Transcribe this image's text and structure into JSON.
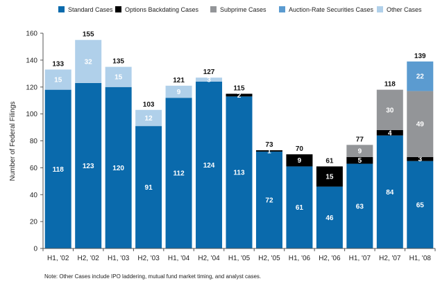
{
  "chart_data": {
    "type": "bar",
    "stacked": true,
    "categories": [
      "H1, '02",
      "H2, '02",
      "H1, '03",
      "H2, '03",
      "H1, '04",
      "H2, '04",
      "H1, '05",
      "H2, '05",
      "H1, '06",
      "H2, '06",
      "H1, '07",
      "H2, '07",
      "H1, '08"
    ],
    "series": [
      {
        "name": "Standard Cases",
        "color": "#0a6aac",
        "label_color": "#ffffff",
        "values": [
          118,
          123,
          120,
          91,
          112,
          124,
          113,
          72,
          61,
          46,
          63,
          84,
          65
        ]
      },
      {
        "name": "Options Backdating Cases",
        "color": "#000000",
        "label_color": "#ffffff",
        "values": [
          0,
          0,
          0,
          0,
          0,
          0,
          2,
          1,
          9,
          15,
          5,
          4,
          3
        ]
      },
      {
        "name": "Subprime Cases",
        "color": "#939598",
        "label_color": "#ffffff",
        "values": [
          0,
          0,
          0,
          0,
          0,
          0,
          0,
          0,
          0,
          0,
          9,
          30,
          49
        ]
      },
      {
        "name": "Auction-Rate Securities Cases",
        "color": "#5b9bd0",
        "label_color": "#ffffff",
        "values": [
          0,
          0,
          0,
          0,
          0,
          0,
          0,
          0,
          0,
          0,
          0,
          0,
          22
        ]
      },
      {
        "name": "Other Cases",
        "color": "#b0d0ea",
        "label_color": "#ffffff",
        "values": [
          15,
          32,
          15,
          12,
          9,
          3,
          0,
          0,
          0,
          0,
          0,
          0,
          0
        ]
      }
    ],
    "segment_labels": [
      [
        "118",
        "123",
        "120",
        "91",
        "112",
        "124",
        "113",
        "72",
        "61",
        "46",
        "63",
        "84",
        "65"
      ],
      [
        "",
        "",
        "",
        "",
        "",
        "",
        "2",
        "1",
        "9",
        "15",
        "5",
        "4",
        "3"
      ],
      [
        "",
        "",
        "",
        "",
        "",
        "",
        "",
        "",
        "",
        "",
        "9",
        "30",
        "49"
      ],
      [
        "",
        "",
        "",
        "",
        "",
        "",
        "",
        "",
        "",
        "",
        "",
        "",
        "22"
      ],
      [
        "15",
        "32",
        "15",
        "12",
        "9",
        "3",
        "",
        "",
        "",
        "",
        "",
        "",
        ""
      ]
    ],
    "totals": [
      133,
      155,
      135,
      103,
      121,
      127,
      115,
      73,
      70,
      61,
      77,
      118,
      139
    ],
    "ylabel": "Number of Federal Filings",
    "xlabel": "",
    "ylim": [
      0,
      160
    ],
    "yticks": [
      0,
      20,
      40,
      60,
      80,
      100,
      120,
      140,
      160
    ],
    "legend_position": "top-right",
    "note": "Note: Other Cases include IPO laddering, mutual fund market timing, and analyst cases."
  }
}
